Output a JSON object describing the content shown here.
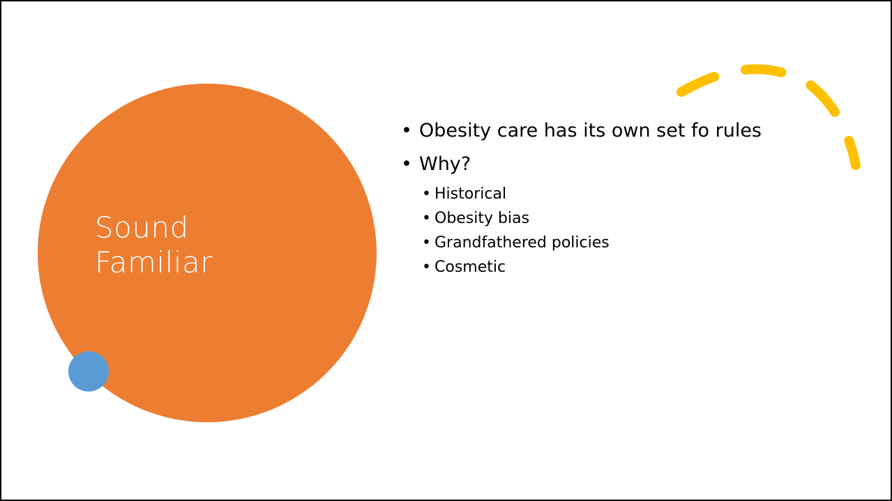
{
  "slide": {
    "title_lines": [
      "Sound",
      "Familiar"
    ],
    "bullets": [
      {
        "text": "Obesity care has its own set fo rules"
      },
      {
        "text": "Why?"
      }
    ],
    "sub_bullets": [
      "Historical",
      "Obesity bias",
      "Grandfathered policies",
      "Cosmetic"
    ],
    "bullet_char": "•"
  },
  "colors": {
    "big_circle": "#ED7D31",
    "small_circle": "#5B9BD5",
    "arc": "#FFC000",
    "title_text": "#FFFFFF",
    "body_text": "#000000",
    "border": "#000000"
  }
}
